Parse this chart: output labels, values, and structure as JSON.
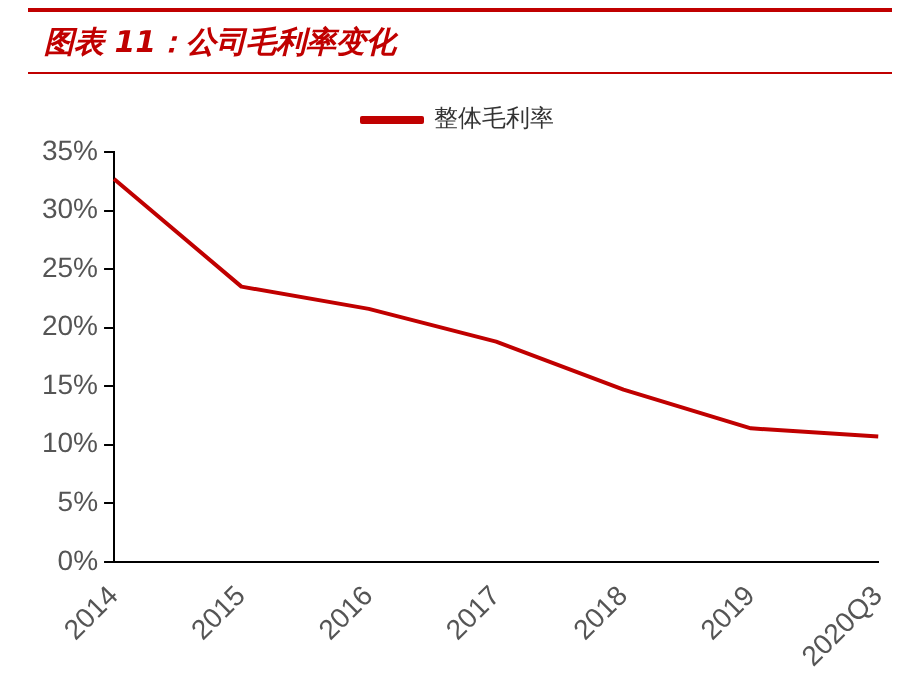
{
  "chart_data": {
    "type": "line",
    "title": "图表 11：公司毛利率变化",
    "categories": [
      "2014",
      "2015",
      "2016",
      "2017",
      "2018",
      "2019",
      "2020Q3"
    ],
    "series": [
      {
        "name": "整体毛利率",
        "color": "#c00000",
        "values": [
          32.7,
          23.5,
          21.6,
          18.8,
          14.7,
          11.4,
          10.7
        ]
      }
    ],
    "ylim": [
      0,
      35
    ],
    "yticks": [
      {
        "value": 0,
        "label": "0%"
      },
      {
        "value": 5,
        "label": "5%"
      },
      {
        "value": 10,
        "label": "10%"
      },
      {
        "value": 15,
        "label": "15%"
      },
      {
        "value": 20,
        "label": "20%"
      },
      {
        "value": 25,
        "label": "25%"
      },
      {
        "value": 30,
        "label": "30%"
      },
      {
        "value": 35,
        "label": "35%"
      }
    ],
    "grid": false,
    "legend": "top",
    "marker": "none",
    "line_style": "solid"
  }
}
